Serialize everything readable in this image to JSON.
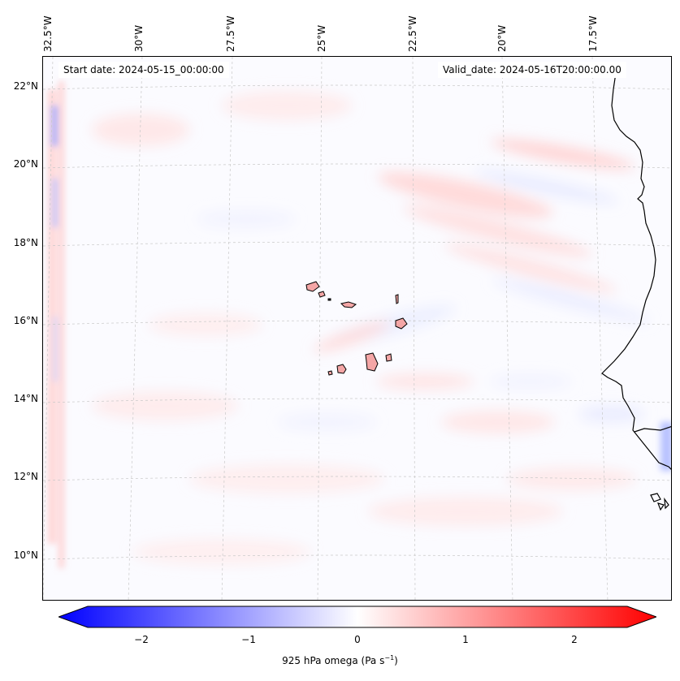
{
  "map": {
    "start_date": "Start date: 2024-05-15_00:00:00",
    "valid_date": "Valid_date: 2024-05-16T20:00:00.00",
    "lon_labels": [
      "32.5°W",
      "30°W",
      "27.5°W",
      "25°W",
      "22.5°W",
      "20°W",
      "17.5°W"
    ],
    "lat_labels": [
      "22°N",
      "20°N",
      "18°N",
      "16°N",
      "14°N",
      "12°N",
      "10°N"
    ],
    "variable": "925 hPa omega",
    "units_prefix": "(Pa s",
    "units_exp": "−1",
    "units_suffix": ")"
  },
  "colorbar": {
    "ticks": [
      "−2",
      "−1",
      "0",
      "1",
      "2"
    ],
    "min": -2.7,
    "max": 2.7,
    "colormap": "bwr",
    "neg_color": "#0000ff",
    "mid_color": "#ffffff",
    "pos_color": "#ff0000"
  },
  "colors": {
    "coastline": "#000000",
    "gridline": "#c8c8c8",
    "land_fill": "#f4a6a6"
  }
}
